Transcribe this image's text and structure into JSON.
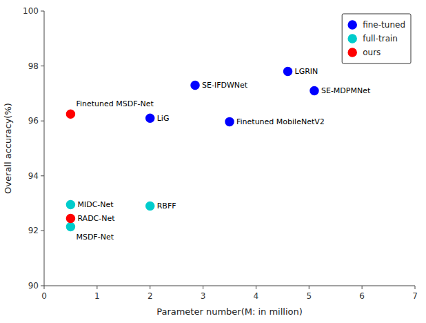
{
  "chart_data": {
    "type": "scatter",
    "xlabel": "Parameter number(M: in million)",
    "ylabel": "Overall accuracy(%)",
    "xlim": [
      0,
      7
    ],
    "ylim": [
      90,
      100
    ],
    "xticks": [
      0,
      1,
      2,
      3,
      4,
      5,
      6,
      7
    ],
    "yticks": [
      90,
      92,
      94,
      96,
      98,
      100
    ],
    "grid": false,
    "legend": "upper right",
    "marker": "circle",
    "series": [
      {
        "name": "fine-tuned",
        "color": "#0000ff",
        "x": [
          2.0,
          2.85,
          3.5,
          4.6,
          5.1
        ],
        "values": [
          96.1,
          97.3,
          95.97,
          97.8,
          97.1
        ],
        "labels": [
          "LiG",
          "SE-IFDWNet",
          "Finetuned MobileNetV2",
          "LGRIN",
          "SE-MDPMNet"
        ]
      },
      {
        "name": "full-train",
        "color": "#00cccc",
        "x": [
          0.5,
          0.5,
          2.0
        ],
        "values": [
          92.95,
          92.15,
          92.9
        ],
        "labels": [
          "MIDC-Net",
          "MSDF-Net",
          "RBFF"
        ]
      },
      {
        "name": "ours",
        "color": "#ff0000",
        "x": [
          0.5,
          0.5
        ],
        "values": [
          96.25,
          92.45
        ],
        "labels": [
          "Finetuned MSDF-Net",
          "RADC-Net"
        ]
      }
    ]
  }
}
